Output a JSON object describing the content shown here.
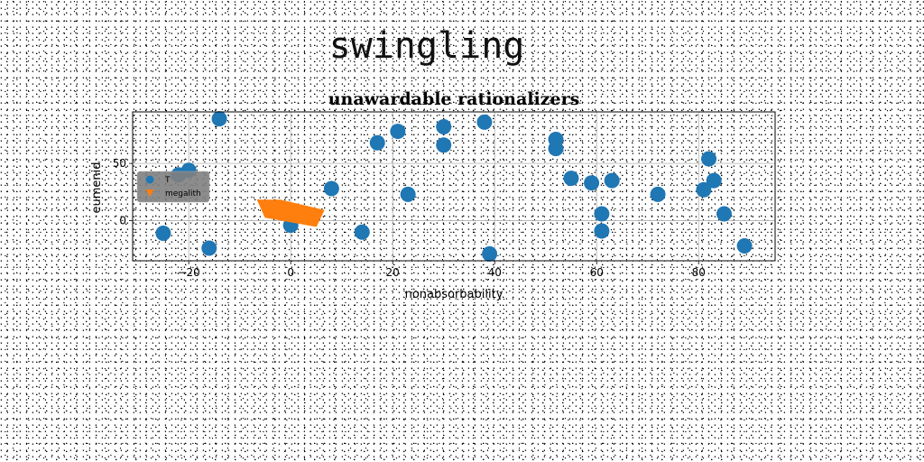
{
  "page": {
    "title": "swingling"
  },
  "chart_data": {
    "type": "scatter",
    "title": "unawardable rationalizers",
    "xlabel": "nonabsorbability",
    "ylabel": "eumenid",
    "xlim": [
      -31,
      95
    ],
    "ylim": [
      -35,
      95
    ],
    "x_ticks": [
      -20,
      0,
      20,
      40,
      60,
      80
    ],
    "y_ticks": [
      0,
      50
    ],
    "grid": true,
    "legend_position": "center-left",
    "colors": {
      "T": "#1f77b4",
      "megalith": "#ff7f0e"
    },
    "series": [
      {
        "name": "T",
        "marker": "circle",
        "points": [
          [
            -14,
            89
          ],
          [
            -20,
            44
          ],
          [
            -22,
            40
          ],
          [
            -25,
            -11
          ],
          [
            -16,
            -24
          ],
          [
            0,
            -4
          ],
          [
            8,
            28
          ],
          [
            14,
            -10
          ],
          [
            17,
            68
          ],
          [
            21,
            78
          ],
          [
            23,
            23
          ],
          [
            30,
            82
          ],
          [
            30,
            66
          ],
          [
            38,
            86
          ],
          [
            39,
            -29
          ],
          [
            52,
            71
          ],
          [
            52,
            63
          ],
          [
            55,
            37
          ],
          [
            59,
            33
          ],
          [
            61,
            6
          ],
          [
            61,
            -9
          ],
          [
            63,
            35
          ],
          [
            72,
            23
          ],
          [
            81,
            27
          ],
          [
            82,
            54
          ],
          [
            83,
            35
          ],
          [
            85,
            6
          ],
          [
            89,
            -22
          ]
        ]
      },
      {
        "name": "megalith",
        "marker": "polygon",
        "points": [
          [
            -6.5,
            18
          ],
          [
            -2,
            18
          ],
          [
            6.5,
            9
          ],
          [
            5,
            -5
          ],
          [
            -5,
            3
          ]
        ]
      }
    ]
  }
}
